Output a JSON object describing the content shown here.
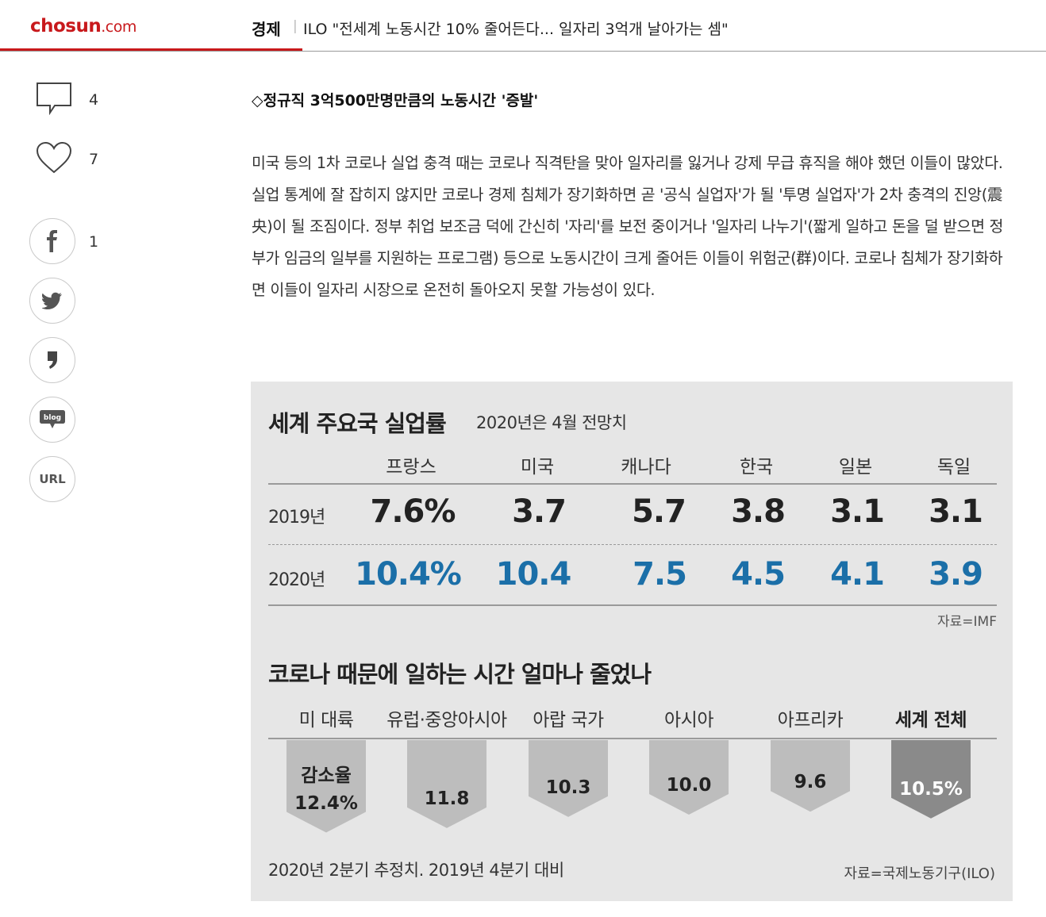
{
  "header": {
    "logo_main": "chosun",
    "logo_suffix": ".com",
    "section": "경제",
    "separator": "|",
    "headline": "ILO \"전세계 노동시간 10% 줄어든다... 일자리 3억개 날아가는 셈\""
  },
  "sidebar": {
    "comment_count": "4",
    "like_count": "7",
    "facebook_count": "1",
    "twitter_icon": "twitter-icon",
    "kakao_icon": "kakaostory-icon",
    "blog_label": "blog",
    "url_label": "URL"
  },
  "article": {
    "subhead": "◇정규직 3억500만명만큼의 노동시간 '증발'",
    "paragraph": "미국 등의 1차 코로나 실업 충격 때는 코로나 직격탄을 맞아 일자리를 잃거나 강제 무급 휴직을 해야 했던 이들이 많았다. 실업 통계에 잘 잡히지 않지만 코로나 경제 침체가 장기화하면 곧 '공식 실업자'가 될 '투명 실업자'가 2차 충격의 진앙(震央)이 될 조짐이다. 정부 취업 보조금 덕에 간신히 '자리'를 보전 중이거나 '일자리 나누기'(짧게 일하고 돈을 덜 받으면 정부가 임금의 일부를 지원하는 프로그램) 등으로 노동시간이 크게 줄어든 이들이 위험군(群)이다. 코로나 침체가 장기화하면 이들이 일자리 시장으로 온전히 돌아오지 못할 가능성이 있다."
  },
  "infographic": {
    "colors": {
      "background": "#e6e6e6",
      "value_2020": "#1b6fa8",
      "highlight_shape": "#8a8a8a",
      "normal_shape": "#bdbdbd"
    },
    "table_title": "세계 주요국 실업률",
    "table_subtitle": "2020년은 4월 전망치",
    "countries": [
      "프랑스",
      "미국",
      "캐나다",
      "한국",
      "일본",
      "독일"
    ],
    "rows": [
      {
        "year": "2019년",
        "values": [
          "7.6%",
          "3.7",
          "5.7",
          "3.8",
          "3.1",
          "3.1"
        ]
      },
      {
        "year": "2020년",
        "values": [
          "10.4%",
          "10.4",
          "7.5",
          "4.5",
          "4.1",
          "3.9"
        ]
      }
    ],
    "table_source": "자료=IMF",
    "chart_title": "코로나 때문에 일하는 시간 얼마나 줄었나",
    "regions": [
      "미 대륙",
      "유럽·중앙아시아",
      "아랍 국가",
      "아시아",
      "아프리카",
      "세계 전체"
    ],
    "decrease_label": "감소율",
    "decrease_values": [
      "12.4%",
      "11.8",
      "10.3",
      "10.0",
      "9.6",
      "10.5%"
    ],
    "note": "2020년 2분기 추정치. 2019년 4분기 대비",
    "chart_source": "자료=국제노동기구(ILO)"
  },
  "chart_data": {
    "type": "bar",
    "title": "코로나 때문에 일하는 시간 얼마나 줄었나",
    "categories": [
      "미 대륙",
      "유럽·중앙아시아",
      "아랍 국가",
      "아시아",
      "아프리카",
      "세계 전체"
    ],
    "series": [
      {
        "name": "감소율",
        "values": [
          12.4,
          11.8,
          10.3,
          10.0,
          9.6,
          10.5
        ]
      }
    ],
    "unit": "%",
    "orientation": "downward",
    "highlight": "세계 전체"
  }
}
